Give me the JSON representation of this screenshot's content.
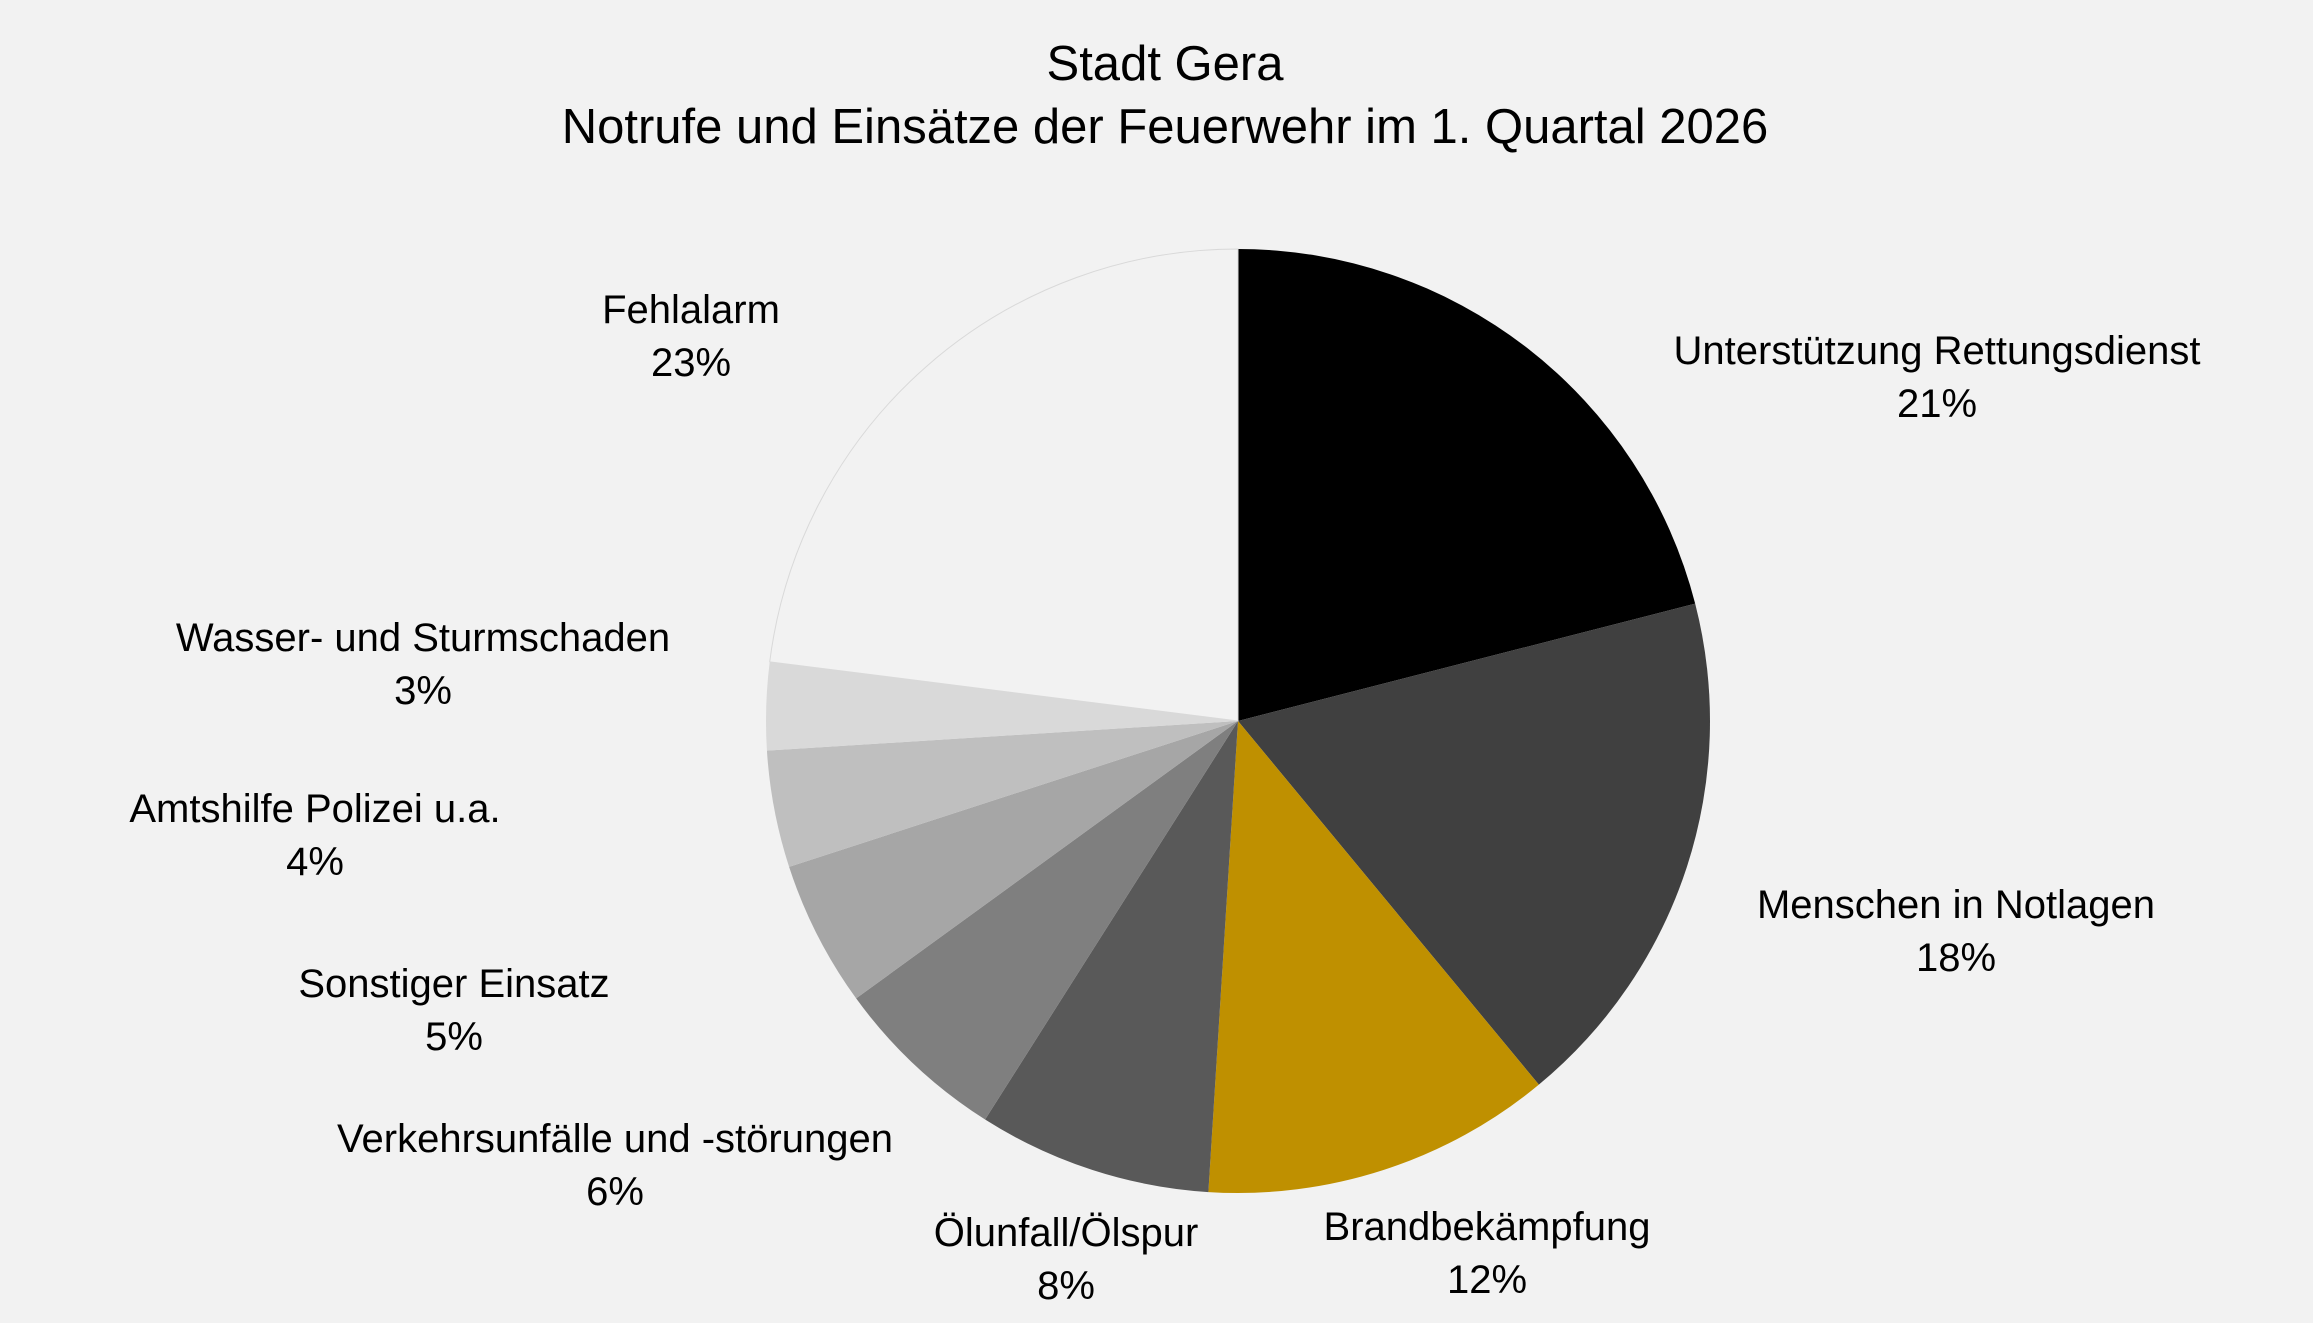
{
  "chart_data": {
    "type": "pie",
    "title": "Stadt Gera",
    "subtitle": "Notrufe und Einsätze der Feuerwehr im 1. Quartal 2026",
    "start_angle": "12 o'clock",
    "direction": "clockwise",
    "slices": [
      {
        "label": "Unterstützung Rettungsdienst",
        "value": 21,
        "value_label": "21%",
        "color": "#000000"
      },
      {
        "label": "Menschen in Notlagen",
        "value": 18,
        "value_label": "18%",
        "color": "#404040"
      },
      {
        "label": "Brandbekämpfung",
        "value": 12,
        "value_label": "12%",
        "color": "#bf9000"
      },
      {
        "label": "Ölunfall/Ölspur",
        "value": 8,
        "value_label": "8%",
        "color": "#595959"
      },
      {
        "label": "Verkehrsunfälle und -störungen",
        "value": 6,
        "value_label": "6%",
        "color": "#7f7f7f"
      },
      {
        "label": "Sonstiger Einsatz",
        "value": 5,
        "value_label": "5%",
        "color": "#a6a6a6"
      },
      {
        "label": "Amtshilfe Polizei u.a.",
        "value": 4,
        "value_label": "4%",
        "color": "#bfbfbf"
      },
      {
        "label": "Wasser- und Sturmschaden",
        "value": 3,
        "value_label": "3%",
        "color": "#d9d9d9"
      },
      {
        "label": "Fehlalarm",
        "value": 23,
        "value_label": "23%",
        "color": "#f2f2f2"
      }
    ]
  }
}
